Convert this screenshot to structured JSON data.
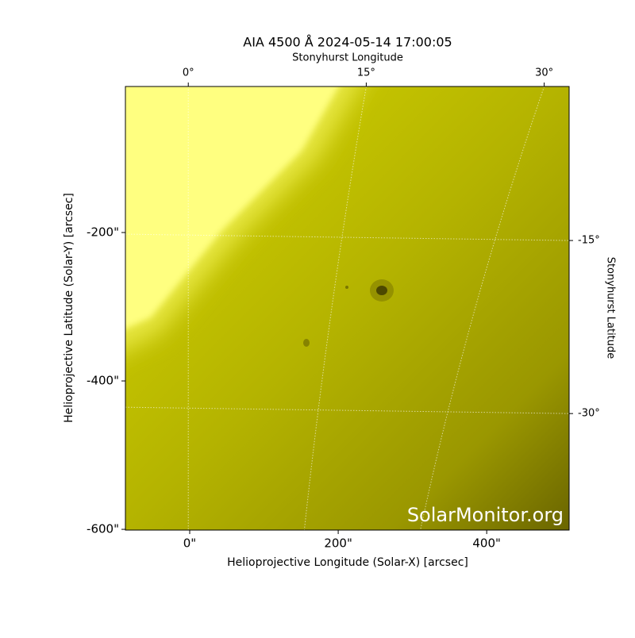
{
  "chart_data": {
    "type": "image",
    "title": "AIA 4500 Å 2024-05-14 17:00:05",
    "xlabel": "Helioprojective Longitude (Solar-X) [arcsec]",
    "ylabel": "Helioprojective Latitude (Solar-Y) [arcsec]",
    "x2label": "Stonyhurst Longitude",
    "y2label": "Stonyhurst Latitude",
    "watermark": "SolarMonitor.org",
    "xlim": [
      -86.6,
      511
    ],
    "ylim": [
      -601,
      -3.2
    ],
    "xticks": [
      {
        "value": 0,
        "label": "0\""
      },
      {
        "value": 200,
        "label": "200\""
      },
      {
        "value": 400,
        "label": "400\""
      }
    ],
    "yticks": [
      {
        "value": -200,
        "label": "-200\""
      },
      {
        "value": -400,
        "label": "-400\""
      },
      {
        "value": -600,
        "label": "-600\""
      }
    ],
    "x2lim": [
      -5.3,
      32.1
    ],
    "x2ticks": [
      {
        "value": 0,
        "label": "0°"
      },
      {
        "value": 15,
        "label": "15°"
      },
      {
        "value": 30,
        "label": "30°"
      }
    ],
    "y2lim": [
      -40.1,
      -1.65
    ],
    "y2ticks": [
      {
        "value": -15,
        "label": "-15°"
      },
      {
        "value": -30,
        "label": "-30°"
      }
    ],
    "grid": true
  }
}
